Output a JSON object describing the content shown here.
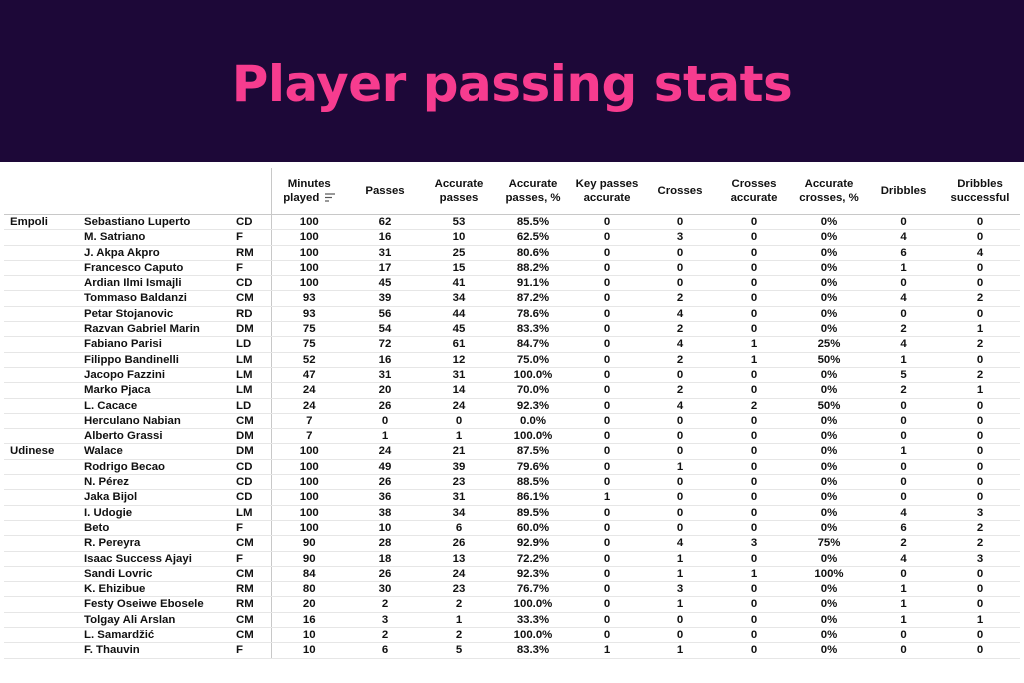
{
  "title": "Player passing stats",
  "columns": [
    "Minutes played",
    "Passes",
    "Accurate passes",
    "Accurate passes, %",
    "Key passes accurate",
    "Crosses",
    "Crosses accurate",
    "Accurate crosses, %",
    "Dribbles",
    "Dribbles successful"
  ],
  "rows": [
    {
      "team": "Empoli",
      "player": "Sebastiano Luperto",
      "pos": "CD",
      "stats": [
        "100",
        "62",
        "53",
        "85.5%",
        "0",
        "0",
        "0",
        "0%",
        "0",
        "0"
      ]
    },
    {
      "team": "",
      "player": "M. Satriano",
      "pos": "F",
      "stats": [
        "100",
        "16",
        "10",
        "62.5%",
        "0",
        "3",
        "0",
        "0%",
        "4",
        "0"
      ]
    },
    {
      "team": "",
      "player": "J. Akpa Akpro",
      "pos": "RM",
      "stats": [
        "100",
        "31",
        "25",
        "80.6%",
        "0",
        "0",
        "0",
        "0%",
        "6",
        "4"
      ]
    },
    {
      "team": "",
      "player": "Francesco Caputo",
      "pos": "F",
      "stats": [
        "100",
        "17",
        "15",
        "88.2%",
        "0",
        "0",
        "0",
        "0%",
        "1",
        "0"
      ]
    },
    {
      "team": "",
      "player": "Ardian Ilmi Ismajli",
      "pos": "CD",
      "stats": [
        "100",
        "45",
        "41",
        "91.1%",
        "0",
        "0",
        "0",
        "0%",
        "0",
        "0"
      ]
    },
    {
      "team": "",
      "player": "Tommaso Baldanzi",
      "pos": "CM",
      "stats": [
        "93",
        "39",
        "34",
        "87.2%",
        "0",
        "2",
        "0",
        "0%",
        "4",
        "2"
      ]
    },
    {
      "team": "",
      "player": "Petar Stojanovic",
      "pos": "RD",
      "stats": [
        "93",
        "56",
        "44",
        "78.6%",
        "0",
        "4",
        "0",
        "0%",
        "0",
        "0"
      ]
    },
    {
      "team": "",
      "player": "Razvan Gabriel Marin",
      "pos": "DM",
      "stats": [
        "75",
        "54",
        "45",
        "83.3%",
        "0",
        "2",
        "0",
        "0%",
        "2",
        "1"
      ]
    },
    {
      "team": "",
      "player": "Fabiano Parisi",
      "pos": "LD",
      "stats": [
        "75",
        "72",
        "61",
        "84.7%",
        "0",
        "4",
        "1",
        "25%",
        "4",
        "2"
      ]
    },
    {
      "team": "",
      "player": "Filippo Bandinelli",
      "pos": "LM",
      "stats": [
        "52",
        "16",
        "12",
        "75.0%",
        "0",
        "2",
        "1",
        "50%",
        "1",
        "0"
      ]
    },
    {
      "team": "",
      "player": "Jacopo Fazzini",
      "pos": "LM",
      "stats": [
        "47",
        "31",
        "31",
        "100.0%",
        "0",
        "0",
        "0",
        "0%",
        "5",
        "2"
      ]
    },
    {
      "team": "",
      "player": "Marko Pjaca",
      "pos": "LM",
      "stats": [
        "24",
        "20",
        "14",
        "70.0%",
        "0",
        "2",
        "0",
        "0%",
        "2",
        "1"
      ]
    },
    {
      "team": "",
      "player": "L. Cacace",
      "pos": "LD",
      "stats": [
        "24",
        "26",
        "24",
        "92.3%",
        "0",
        "4",
        "2",
        "50%",
        "0",
        "0"
      ]
    },
    {
      "team": "",
      "player": "Herculano Nabian",
      "pos": "CM",
      "stats": [
        "7",
        "0",
        "0",
        "0.0%",
        "0",
        "0",
        "0",
        "0%",
        "0",
        "0"
      ]
    },
    {
      "team": "",
      "player": "Alberto Grassi",
      "pos": "DM",
      "stats": [
        "7",
        "1",
        "1",
        "100.0%",
        "0",
        "0",
        "0",
        "0%",
        "0",
        "0"
      ]
    },
    {
      "team": "Udinese",
      "player": "Walace",
      "pos": "DM",
      "stats": [
        "100",
        "24",
        "21",
        "87.5%",
        "0",
        "0",
        "0",
        "0%",
        "1",
        "0"
      ]
    },
    {
      "team": "",
      "player": "Rodrigo Becao",
      "pos": "CD",
      "stats": [
        "100",
        "49",
        "39",
        "79.6%",
        "0",
        "1",
        "0",
        "0%",
        "0",
        "0"
      ]
    },
    {
      "team": "",
      "player": "N. Pérez",
      "pos": "CD",
      "stats": [
        "100",
        "26",
        "23",
        "88.5%",
        "0",
        "0",
        "0",
        "0%",
        "0",
        "0"
      ]
    },
    {
      "team": "",
      "player": "Jaka Bijol",
      "pos": "CD",
      "stats": [
        "100",
        "36",
        "31",
        "86.1%",
        "1",
        "0",
        "0",
        "0%",
        "0",
        "0"
      ]
    },
    {
      "team": "",
      "player": "I. Udogie",
      "pos": "LM",
      "stats": [
        "100",
        "38",
        "34",
        "89.5%",
        "0",
        "0",
        "0",
        "0%",
        "4",
        "3"
      ]
    },
    {
      "team": "",
      "player": "Beto",
      "pos": "F",
      "stats": [
        "100",
        "10",
        "6",
        "60.0%",
        "0",
        "0",
        "0",
        "0%",
        "6",
        "2"
      ]
    },
    {
      "team": "",
      "player": "R. Pereyra",
      "pos": "CM",
      "stats": [
        "90",
        "28",
        "26",
        "92.9%",
        "0",
        "4",
        "3",
        "75%",
        "2",
        "2"
      ]
    },
    {
      "team": "",
      "player": "Isaac Success Ajayi",
      "pos": "F",
      "stats": [
        "90",
        "18",
        "13",
        "72.2%",
        "0",
        "1",
        "0",
        "0%",
        "4",
        "3"
      ]
    },
    {
      "team": "",
      "player": "Sandi Lovric",
      "pos": "CM",
      "stats": [
        "84",
        "26",
        "24",
        "92.3%",
        "0",
        "1",
        "1",
        "100%",
        "0",
        "0"
      ]
    },
    {
      "team": "",
      "player": "K. Ehizibue",
      "pos": "RM",
      "stats": [
        "80",
        "30",
        "23",
        "76.7%",
        "0",
        "3",
        "0",
        "0%",
        "1",
        "0"
      ]
    },
    {
      "team": "",
      "player": "Festy Oseiwe Ebosele",
      "pos": "RM",
      "stats": [
        "20",
        "2",
        "2",
        "100.0%",
        "0",
        "1",
        "0",
        "0%",
        "1",
        "0"
      ]
    },
    {
      "team": "",
      "player": "Tolgay Ali Arslan",
      "pos": "CM",
      "stats": [
        "16",
        "3",
        "1",
        "33.3%",
        "0",
        "0",
        "0",
        "0%",
        "1",
        "1"
      ]
    },
    {
      "team": "",
      "player": "L. Samardžić",
      "pos": "CM",
      "stats": [
        "10",
        "2",
        "2",
        "100.0%",
        "0",
        "0",
        "0",
        "0%",
        "0",
        "0"
      ]
    },
    {
      "team": "",
      "player": "F. Thauvin",
      "pos": "F",
      "stats": [
        "10",
        "6",
        "5",
        "83.3%",
        "1",
        "1",
        "0",
        "0%",
        "0",
        "0"
      ]
    }
  ]
}
